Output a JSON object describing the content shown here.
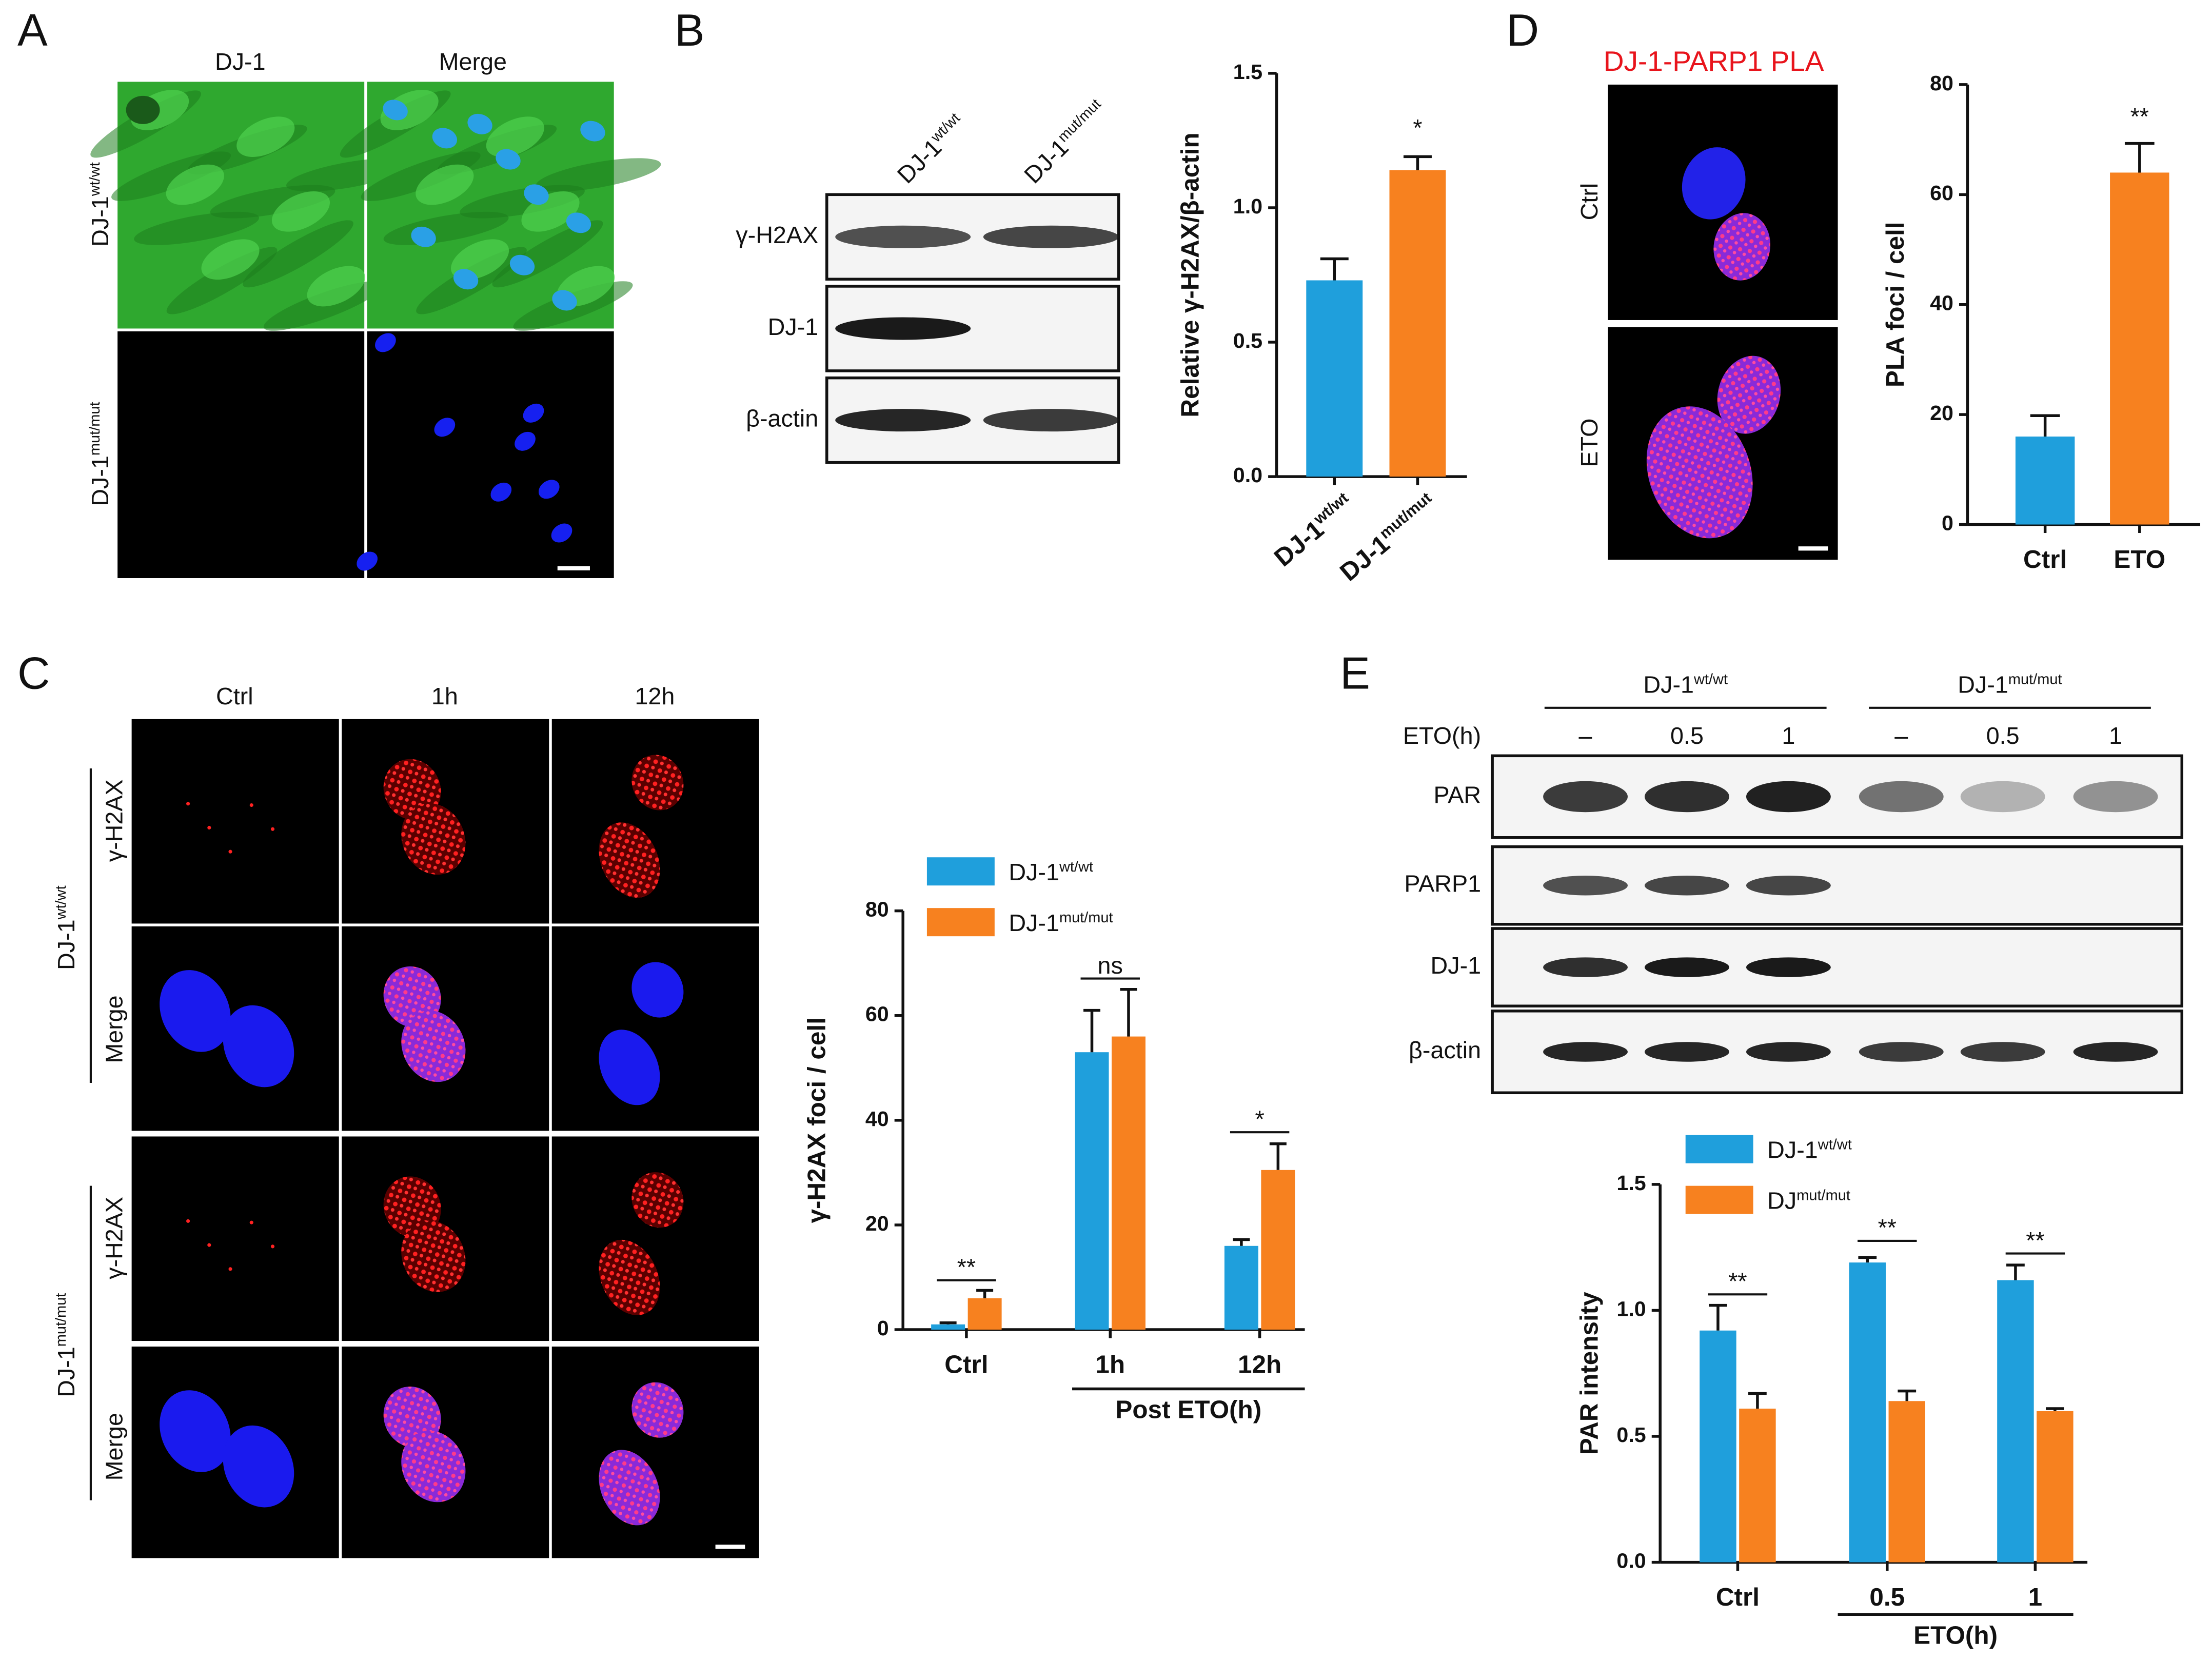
{
  "panels": {
    "A": {
      "letter": "A",
      "columns": [
        "DJ-1",
        "Merge"
      ],
      "rows": [
        [
          "DJ-1",
          "wt/wt"
        ],
        [
          "DJ-1",
          "mut/mut"
        ]
      ]
    },
    "B": {
      "letter": "B",
      "columns": [
        [
          "DJ-1",
          "wt/wt"
        ],
        [
          "DJ-1",
          "mut/mut"
        ]
      ],
      "bands": [
        "γ-H2AX",
        "DJ-1",
        "β-actin"
      ]
    },
    "C": {
      "letter": "C",
      "columns": [
        "Ctrl",
        "1h",
        "12h"
      ],
      "genotypes": [
        [
          "DJ-1",
          "wt/wt"
        ],
        [
          "DJ-1",
          "mut/mut"
        ]
      ],
      "stains": [
        "γ-H2AX",
        "Merge"
      ]
    },
    "D": {
      "letter": "D",
      "title": "DJ-1-PARP1 PLA",
      "rows": [
        "Ctrl",
        "ETO"
      ]
    },
    "E": {
      "letter": "E",
      "genotypes": [
        [
          "DJ-1",
          "wt/wt"
        ],
        [
          "DJ-1",
          "mut/mut"
        ]
      ],
      "treatment": "ETO(h)",
      "doses": [
        "–",
        "0.5",
        "1",
        "–",
        "0.5",
        "1"
      ],
      "bands": [
        "PAR",
        "PARP1",
        "DJ-1",
        "β-actin"
      ]
    }
  },
  "chart_data": [
    {
      "type": "bar",
      "ylabel": "Relative γ-H2AX/β-actin",
      "categories": [
        [
          "DJ-1",
          "wt/wt"
        ],
        [
          "DJ-1",
          "mut/mut"
        ]
      ],
      "values": [
        0.73,
        1.14
      ],
      "errors": [
        0.08,
        0.05
      ],
      "colors": [
        "#1f9fdc",
        "#f7811f"
      ],
      "ylim": [
        0,
        1.5
      ],
      "yticks": [
        {
          "value": 0,
          "label": "0.0"
        },
        {
          "value": 0.5,
          "label": "0.5"
        },
        {
          "value": 1,
          "label": "1.0"
        },
        {
          "value": 1.5,
          "label": "1.5"
        }
      ],
      "annotations": [
        "*"
      ]
    },
    {
      "type": "bar",
      "ylabel": "PLA foci / cell",
      "categories": [
        "Ctrl",
        "ETO"
      ],
      "values": [
        16,
        64
      ],
      "errors": [
        3.8,
        5.3
      ],
      "colors": [
        "#1f9fdc",
        "#f7811f"
      ],
      "ylim": [
        0,
        80
      ],
      "yticks": [
        0,
        20,
        40,
        60,
        80
      ],
      "annotations": [
        "**"
      ]
    },
    {
      "type": "bar",
      "ylabel": "γ-H2AX foci / cell",
      "categories": [
        "Ctrl",
        "1h",
        "12h"
      ],
      "group_label": "Post ETO(h)",
      "series": [
        {
          "name": [
            "DJ-1",
            "wt/wt"
          ],
          "color": "#1f9fdc",
          "values": [
            1,
            53,
            16
          ],
          "errors": [
            0.3,
            8,
            1.2
          ]
        },
        {
          "name": [
            "DJ-1",
            "mut/mut"
          ],
          "color": "#f7811f",
          "values": [
            6,
            56,
            30.5
          ],
          "errors": [
            1.5,
            9,
            5
          ]
        }
      ],
      "ylim": [
        0,
        80
      ],
      "yticks": [
        0,
        20,
        40,
        60,
        80
      ],
      "annotations": [
        "**",
        "ns",
        "*"
      ]
    },
    {
      "type": "bar",
      "ylabel": "PAR intensity",
      "categories": [
        "Ctrl",
        "0.5",
        "1"
      ],
      "group_label": "ETO(h)",
      "series": [
        {
          "name": [
            "DJ-1",
            "wt/wt"
          ],
          "color": "#1f9fdc",
          "values": [
            0.92,
            1.19,
            1.12
          ],
          "errors": [
            0.1,
            0.02,
            0.06
          ]
        },
        {
          "name": [
            "DJ",
            "mut/mut"
          ],
          "color": "#f7811f",
          "values": [
            0.61,
            0.64,
            0.6
          ],
          "errors": [
            0.06,
            0.04,
            0.01
          ]
        }
      ],
      "ylim": [
        0,
        1.5
      ],
      "yticks": [
        {
          "value": 0,
          "label": "0.0"
        },
        {
          "value": 0.5,
          "label": "0.5"
        },
        {
          "value": 1,
          "label": "1.0"
        },
        {
          "value": 1.5,
          "label": "1.5"
        }
      ],
      "annotations": [
        "**",
        "**",
        "**"
      ]
    }
  ]
}
